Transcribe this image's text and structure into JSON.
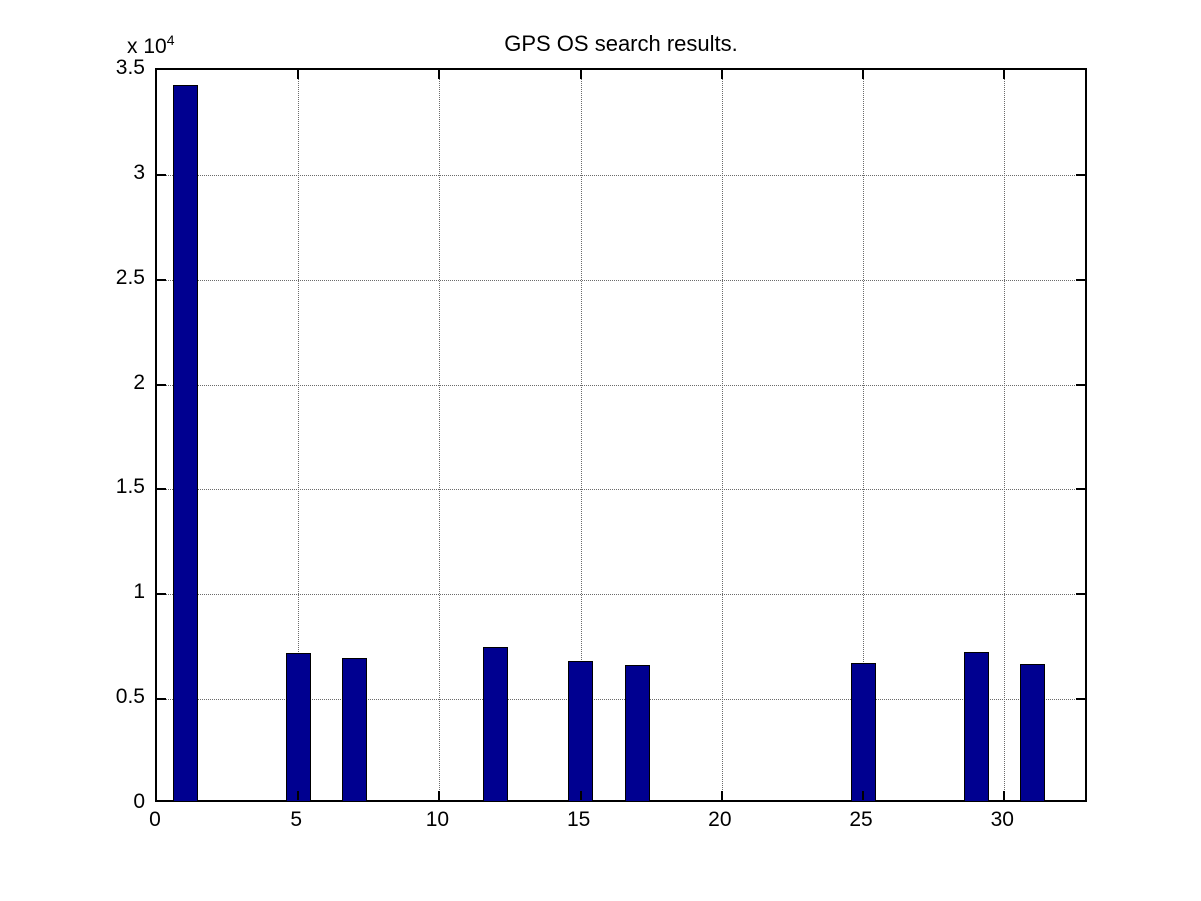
{
  "figure": {
    "background": "#ffffff"
  },
  "chart_data": {
    "type": "bar",
    "title": "GPS OS search results.",
    "xlabel": "",
    "ylabel": "",
    "y_exponent_label": "x 10",
    "y_exponent_power": "4",
    "xlim": [
      0,
      33
    ],
    "ylim": [
      0,
      35000
    ],
    "x_ticks": [
      0,
      5,
      10,
      15,
      20,
      25,
      30
    ],
    "x_tick_labels": [
      "0",
      "5",
      "10",
      "15",
      "20",
      "25",
      "30"
    ],
    "y_ticks": [
      0,
      5000,
      10000,
      15000,
      20000,
      25000,
      30000,
      35000
    ],
    "y_tick_labels": [
      "0",
      "0.5",
      "1",
      "1.5",
      "2",
      "2.5",
      "3",
      "3.5"
    ],
    "grid": true,
    "legend": null,
    "bar_width_units": 0.8,
    "bar_color": "#000090",
    "bar_edge_color": "#000000",
    "x": [
      1,
      5,
      7,
      12,
      15,
      17,
      25,
      29,
      31
    ],
    "values": [
      34300,
      7200,
      6950,
      7500,
      6800,
      6640,
      6700,
      7250,
      6660
    ]
  }
}
